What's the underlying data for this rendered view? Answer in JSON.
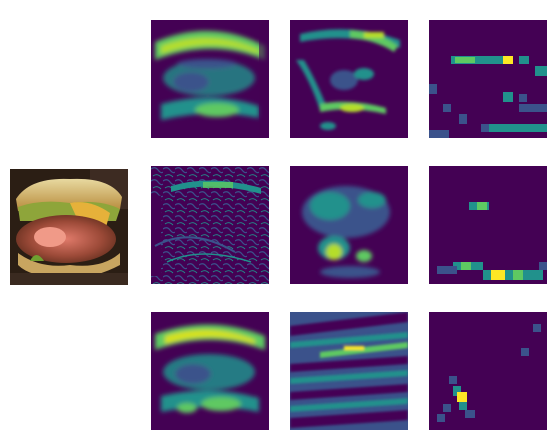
{
  "figure": {
    "input_image": {
      "subject": "burger-photo"
    },
    "rows": [
      {
        "tiles": [
          "activation-map",
          "activation-map",
          "activation-map"
        ]
      },
      {
        "tiles": [
          "activation-map",
          "activation-map",
          "activation-map"
        ]
      },
      {
        "tiles": [
          "activation-map",
          "activation-map",
          "activation-map"
        ]
      }
    ],
    "colormap": [
      "#440154",
      "#3b528b",
      "#21918c",
      "#5ec962",
      "#fde725"
    ]
  }
}
